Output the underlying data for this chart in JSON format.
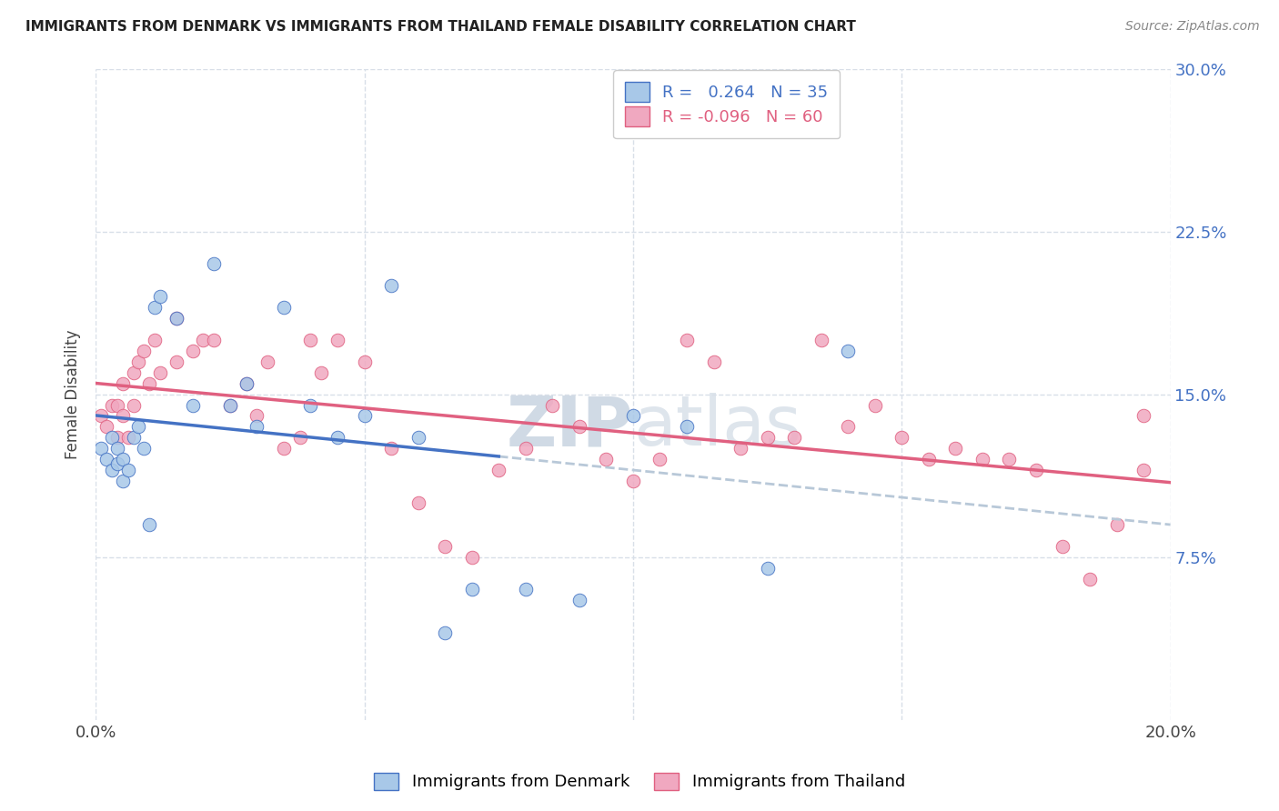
{
  "title": "IMMIGRANTS FROM DENMARK VS IMMIGRANTS FROM THAILAND FEMALE DISABILITY CORRELATION CHART",
  "source": "Source: ZipAtlas.com",
  "ylabel": "Female Disability",
  "r_denmark": 0.264,
  "n_denmark": 35,
  "r_thailand": -0.096,
  "n_thailand": 60,
  "xlim": [
    0.0,
    0.2
  ],
  "ylim": [
    0.0,
    0.3
  ],
  "yticks": [
    0.075,
    0.15,
    0.225,
    0.3
  ],
  "ytick_labels": [
    "7.5%",
    "15.0%",
    "22.5%",
    "30.0%"
  ],
  "xticks": [
    0.0,
    0.05,
    0.1,
    0.15,
    0.2
  ],
  "color_denmark": "#a8c8e8",
  "color_thailand": "#f0a8c0",
  "line_color_denmark": "#4472c4",
  "line_color_thailand": "#e06080",
  "line_color_dashed": "#b8c8d8",
  "denmark_x": [
    0.001,
    0.002,
    0.003,
    0.003,
    0.004,
    0.004,
    0.005,
    0.005,
    0.006,
    0.007,
    0.008,
    0.009,
    0.01,
    0.011,
    0.012,
    0.015,
    0.018,
    0.022,
    0.025,
    0.03,
    0.035,
    0.04,
    0.045,
    0.05,
    0.06,
    0.065,
    0.07,
    0.08,
    0.09,
    0.1,
    0.11,
    0.125,
    0.14,
    0.055,
    0.028
  ],
  "denmark_y": [
    0.125,
    0.12,
    0.115,
    0.13,
    0.125,
    0.118,
    0.11,
    0.12,
    0.115,
    0.13,
    0.135,
    0.125,
    0.09,
    0.19,
    0.195,
    0.185,
    0.145,
    0.21,
    0.145,
    0.135,
    0.19,
    0.145,
    0.13,
    0.14,
    0.13,
    0.04,
    0.06,
    0.06,
    0.055,
    0.14,
    0.135,
    0.07,
    0.17,
    0.2,
    0.155
  ],
  "thailand_x": [
    0.001,
    0.002,
    0.003,
    0.004,
    0.004,
    0.005,
    0.005,
    0.006,
    0.007,
    0.007,
    0.008,
    0.009,
    0.01,
    0.011,
    0.012,
    0.015,
    0.015,
    0.018,
    0.02,
    0.022,
    0.025,
    0.028,
    0.03,
    0.032,
    0.035,
    0.038,
    0.04,
    0.042,
    0.045,
    0.05,
    0.055,
    0.06,
    0.065,
    0.07,
    0.075,
    0.08,
    0.085,
    0.09,
    0.095,
    0.1,
    0.105,
    0.11,
    0.115,
    0.12,
    0.125,
    0.13,
    0.135,
    0.14,
    0.145,
    0.15,
    0.155,
    0.16,
    0.165,
    0.17,
    0.175,
    0.18,
    0.185,
    0.19,
    0.195,
    0.195
  ],
  "thailand_y": [
    0.14,
    0.135,
    0.145,
    0.145,
    0.13,
    0.155,
    0.14,
    0.13,
    0.145,
    0.16,
    0.165,
    0.17,
    0.155,
    0.175,
    0.16,
    0.165,
    0.185,
    0.17,
    0.175,
    0.175,
    0.145,
    0.155,
    0.14,
    0.165,
    0.125,
    0.13,
    0.175,
    0.16,
    0.175,
    0.165,
    0.125,
    0.1,
    0.08,
    0.075,
    0.115,
    0.125,
    0.145,
    0.135,
    0.12,
    0.11,
    0.12,
    0.175,
    0.165,
    0.125,
    0.13,
    0.13,
    0.175,
    0.135,
    0.145,
    0.13,
    0.12,
    0.125,
    0.12,
    0.12,
    0.115,
    0.08,
    0.065,
    0.09,
    0.115,
    0.14
  ],
  "background_color": "#ffffff",
  "grid_color": "#d8dfe8",
  "watermark_color": "#d0dae5"
}
